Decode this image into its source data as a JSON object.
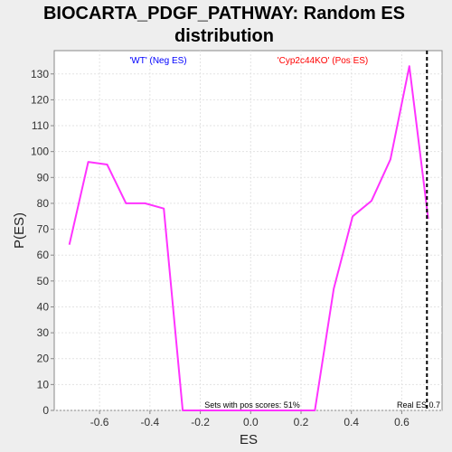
{
  "chart_data": {
    "type": "line",
    "title_lines": [
      "BIOCARTA_PDGF_PATHWAY: Random ES",
      "distribution"
    ],
    "xlabel": "ES",
    "ylabel": "P(ES)",
    "xlim": [
      -0.78,
      0.76
    ],
    "ylim": [
      0,
      139
    ],
    "x_ticks": [
      -0.6,
      -0.4,
      -0.2,
      0.0,
      0.2,
      0.4,
      0.6
    ],
    "x_tick_labels": [
      "-0.6",
      "-0.4",
      "-0.2",
      "0.0",
      "0.2",
      "0.4",
      "0.6"
    ],
    "y_ticks": [
      0,
      10,
      20,
      30,
      40,
      50,
      60,
      70,
      80,
      90,
      100,
      110,
      120,
      130
    ],
    "y_tick_labels": [
      "0",
      "10",
      "20",
      "30",
      "40",
      "50",
      "60",
      "70",
      "80",
      "90",
      "100",
      "110",
      "120",
      "130"
    ],
    "grid": true,
    "series": [
      {
        "color": "#ff33ff",
        "x": [
          -0.72,
          -0.645,
          -0.57,
          -0.495,
          -0.42,
          -0.345,
          -0.27,
          -0.195,
          -0.12,
          -0.045,
          0.03,
          0.105,
          0.18,
          0.255,
          0.33,
          0.405,
          0.48,
          0.555,
          0.63,
          0.705
        ],
        "y": [
          64,
          96,
          95,
          80,
          80,
          78,
          0,
          0,
          0,
          0,
          0,
          0,
          0,
          0,
          47,
          75,
          81,
          97,
          133,
          74
        ]
      }
    ],
    "real_es": {
      "x": 0.7,
      "label": "Real ES 0.7",
      "color": "#000000"
    },
    "annotations": {
      "neg": {
        "text": "'WT' (Neg ES)",
        "color": "#0000ff"
      },
      "pos": {
        "text": "'Cyp2c44KO' (Pos ES)",
        "color": "#ff0000"
      },
      "bottom": {
        "text": "Sets with pos scores: 51%",
        "color": "#000000"
      }
    }
  }
}
